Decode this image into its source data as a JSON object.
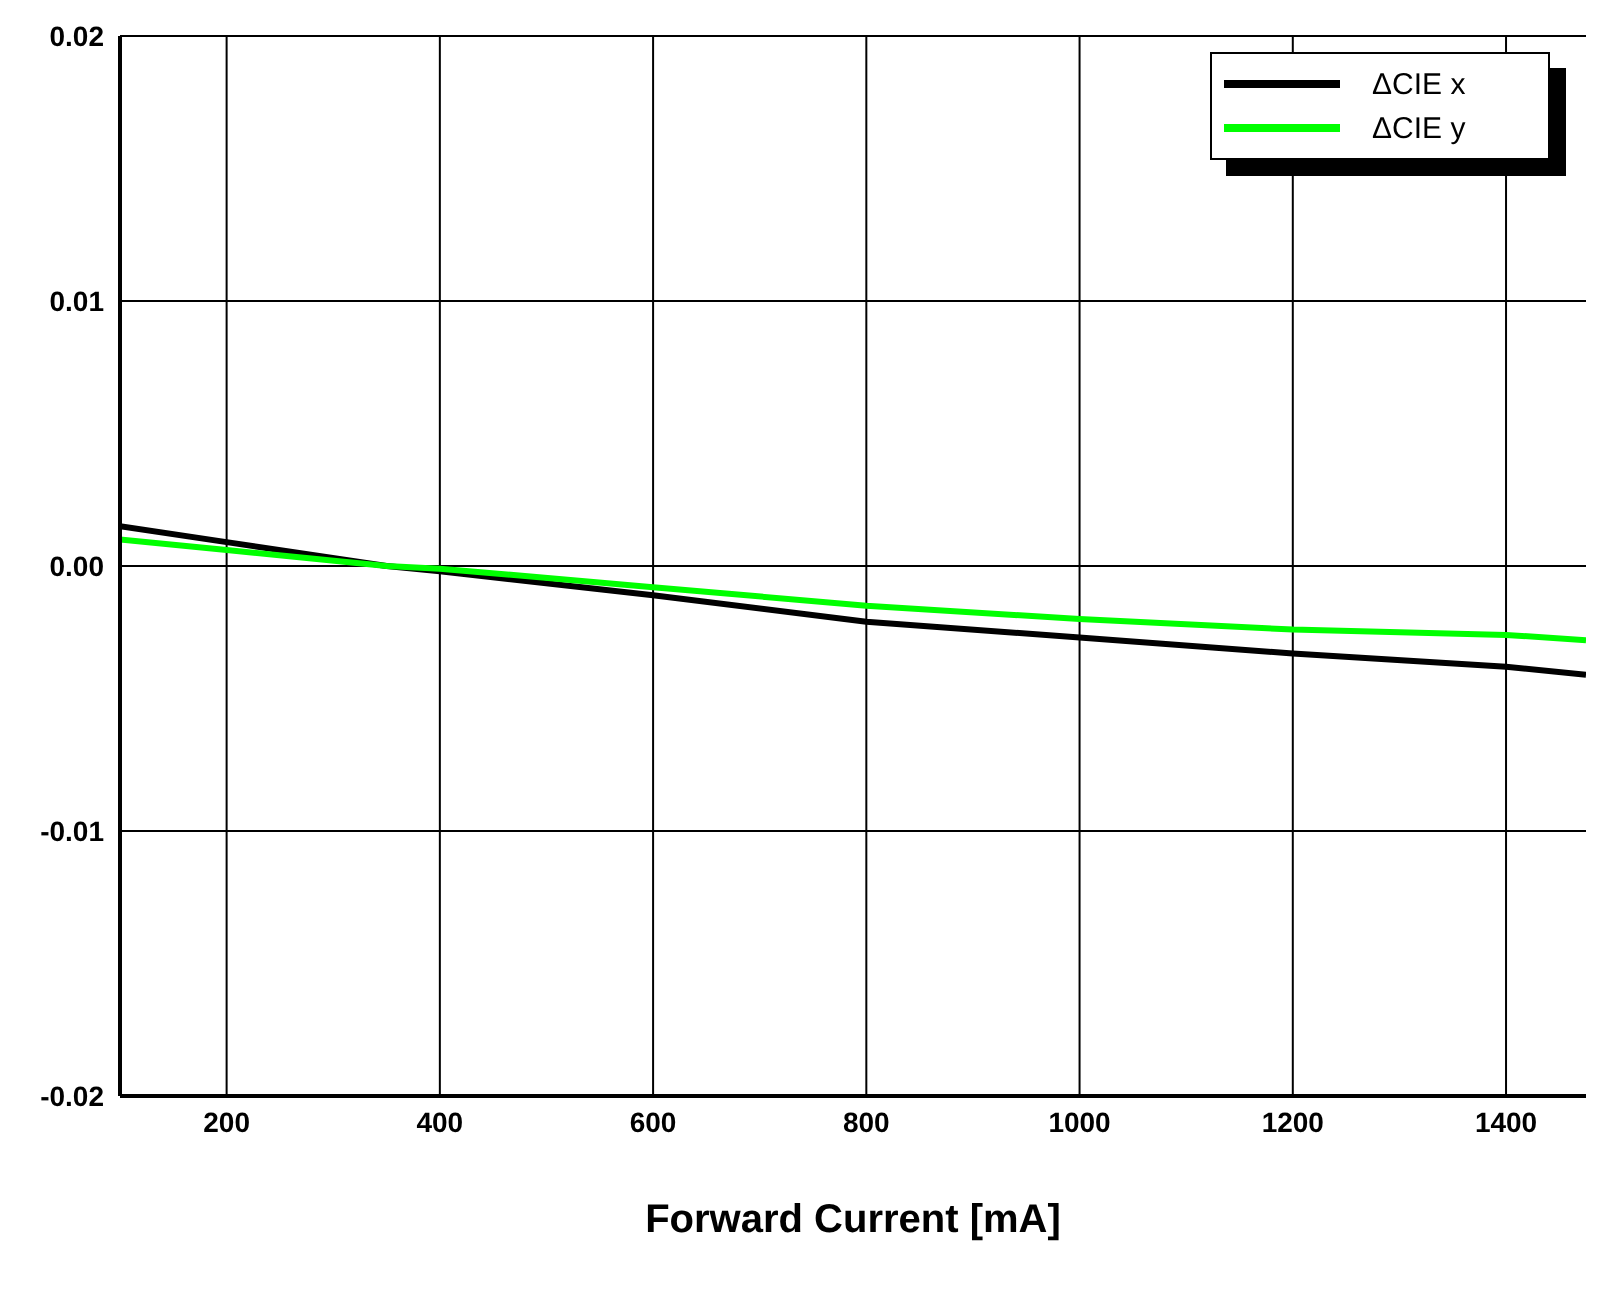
{
  "chart_data": {
    "type": "line",
    "xlabel": "Forward Current [mA]",
    "x": [
      100,
      200,
      350,
      400,
      600,
      800,
      1000,
      1200,
      1400,
      1475
    ],
    "series": [
      {
        "name": "ΔCIE x",
        "color": "#000000",
        "values": [
          0.0015,
          0.0009,
          0,
          -0.0002,
          -0.0011,
          -0.0021,
          -0.0027,
          -0.0033,
          -0.0038,
          -0.0041
        ]
      },
      {
        "name": "ΔCIE y",
        "color": "#00ff00",
        "values": [
          0.001,
          0.0006,
          0,
          -0.0001,
          -0.0008,
          -0.0015,
          -0.002,
          -0.0024,
          -0.0026,
          -0.0028
        ]
      }
    ],
    "xlim": [
      100,
      1475
    ],
    "xticks": [
      200,
      400,
      600,
      800,
      1000,
      1200,
      1400
    ],
    "ylim": [
      -0.02,
      0.02
    ],
    "yticks": [
      {
        "value": -0.02,
        "label": "-0.02"
      },
      {
        "value": -0.01,
        "label": "-0.01"
      },
      {
        "value": 0,
        "label": "0.00"
      },
      {
        "value": 0.01,
        "label": "0.01"
      },
      {
        "value": 0.02,
        "label": "0.02"
      }
    ],
    "grid": true,
    "legend": "top right",
    "marker": "none",
    "line_style": "solid"
  }
}
